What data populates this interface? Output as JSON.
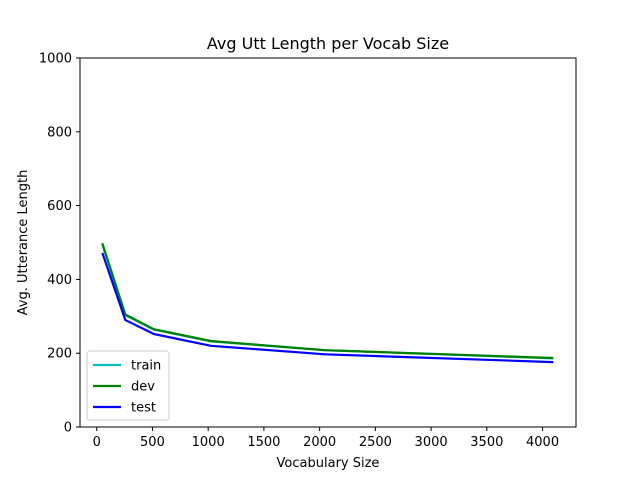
{
  "chart_data": {
    "type": "line",
    "title": "Avg Utt Length per Vocab Size",
    "xlabel": "Vocabulary Size",
    "ylabel": "Avg. Utterance Length",
    "xlim": [
      -150,
      4300
    ],
    "ylim": [
      0,
      1000
    ],
    "xticks": [
      0,
      500,
      1000,
      1500,
      2000,
      2500,
      3000,
      3500,
      4000
    ],
    "yticks": [
      0,
      200,
      400,
      600,
      800,
      1000
    ],
    "grid": false,
    "legend_position": "lower-left",
    "x": [
      50,
      256,
      512,
      1024,
      2048,
      4096
    ],
    "series": [
      {
        "name": "train",
        "color": "#00bfbf",
        "values": [
          495,
          303,
          264,
          232,
          208,
          186
        ]
      },
      {
        "name": "dev",
        "color": "#008000",
        "values": [
          498,
          305,
          265,
          233,
          208,
          187
        ]
      },
      {
        "name": "test",
        "color": "#0000ff",
        "values": [
          472,
          290,
          252,
          220,
          197,
          176
        ]
      }
    ]
  }
}
